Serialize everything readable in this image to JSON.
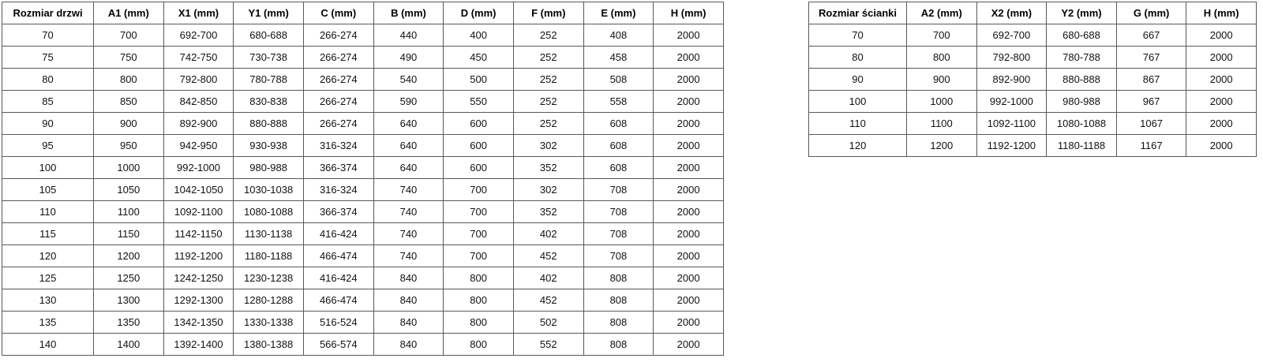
{
  "colors": {
    "background": "#ffffff",
    "border": "#595959",
    "text": "#111111"
  },
  "doors_table": {
    "headers": [
      "Rozmiar drzwi",
      "A1 (mm)",
      "X1 (mm)",
      "Y1 (mm)",
      "C (mm)",
      "B (mm)",
      "D (mm)",
      "F (mm)",
      "E (mm)",
      "H (mm)"
    ],
    "rows": [
      [
        "70",
        "700",
        "692-700",
        "680-688",
        "266-274",
        "440",
        "400",
        "252",
        "408",
        "2000"
      ],
      [
        "75",
        "750",
        "742-750",
        "730-738",
        "266-274",
        "490",
        "450",
        "252",
        "458",
        "2000"
      ],
      [
        "80",
        "800",
        "792-800",
        "780-788",
        "266-274",
        "540",
        "500",
        "252",
        "508",
        "2000"
      ],
      [
        "85",
        "850",
        "842-850",
        "830-838",
        "266-274",
        "590",
        "550",
        "252",
        "558",
        "2000"
      ],
      [
        "90",
        "900",
        "892-900",
        "880-888",
        "266-274",
        "640",
        "600",
        "252",
        "608",
        "2000"
      ],
      [
        "95",
        "950",
        "942-950",
        "930-938",
        "316-324",
        "640",
        "600",
        "302",
        "608",
        "2000"
      ],
      [
        "100",
        "1000",
        "992-1000",
        "980-988",
        "366-374",
        "640",
        "600",
        "352",
        "608",
        "2000"
      ],
      [
        "105",
        "1050",
        "1042-1050",
        "1030-1038",
        "316-324",
        "740",
        "700",
        "302",
        "708",
        "2000"
      ],
      [
        "110",
        "1100",
        "1092-1100",
        "1080-1088",
        "366-374",
        "740",
        "700",
        "352",
        "708",
        "2000"
      ],
      [
        "115",
        "1150",
        "1142-1150",
        "1130-1138",
        "416-424",
        "740",
        "700",
        "402",
        "708",
        "2000"
      ],
      [
        "120",
        "1200",
        "1192-1200",
        "1180-1188",
        "466-474",
        "740",
        "700",
        "452",
        "708",
        "2000"
      ],
      [
        "125",
        "1250",
        "1242-1250",
        "1230-1238",
        "416-424",
        "840",
        "800",
        "402",
        "808",
        "2000"
      ],
      [
        "130",
        "1300",
        "1292-1300",
        "1280-1288",
        "466-474",
        "840",
        "800",
        "452",
        "808",
        "2000"
      ],
      [
        "135",
        "1350",
        "1342-1350",
        "1330-1338",
        "516-524",
        "840",
        "800",
        "502",
        "808",
        "2000"
      ],
      [
        "140",
        "1400",
        "1392-1400",
        "1380-1388",
        "566-574",
        "840",
        "800",
        "552",
        "808",
        "2000"
      ]
    ]
  },
  "wall_table": {
    "headers": [
      "Rozmiar ścianki",
      "A2 (mm)",
      "X2 (mm)",
      "Y2 (mm)",
      "G (mm)",
      "H (mm)"
    ],
    "rows": [
      [
        "70",
        "700",
        "692-700",
        "680-688",
        "667",
        "2000"
      ],
      [
        "80",
        "800",
        "792-800",
        "780-788",
        "767",
        "2000"
      ],
      [
        "90",
        "900",
        "892-900",
        "880-888",
        "867",
        "2000"
      ],
      [
        "100",
        "1000",
        "992-1000",
        "980-988",
        "967",
        "2000"
      ],
      [
        "110",
        "1100",
        "1092-1100",
        "1080-1088",
        "1067",
        "2000"
      ],
      [
        "120",
        "1200",
        "1192-1200",
        "1180-1188",
        "1167",
        "2000"
      ]
    ]
  }
}
